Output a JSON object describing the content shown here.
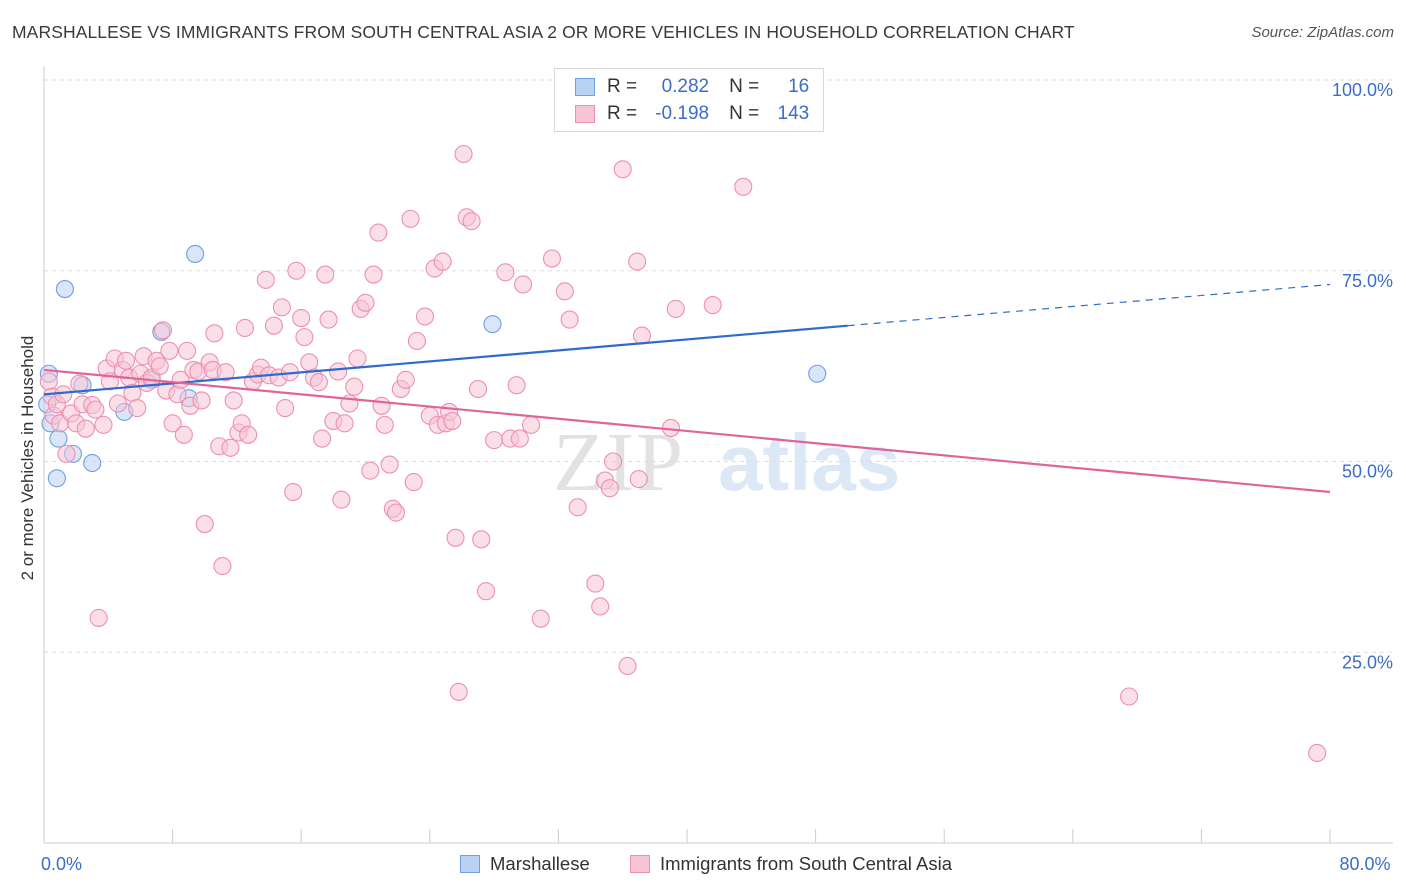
{
  "title": "MARSHALLESE VS IMMIGRANTS FROM SOUTH CENTRAL ASIA 2 OR MORE VEHICLES IN HOUSEHOLD CORRELATION CHART",
  "source": "Source: ZipAtlas.com",
  "watermark": {
    "zip": "ZIP",
    "atlas": "atlas"
  },
  "legend_top": [
    {
      "r_label": "R =",
      "r_value": "0.282",
      "n_label": "N =",
      "n_value": "16"
    },
    {
      "r_label": "R =",
      "r_value": "-0.198",
      "n_label": "N =",
      "n_value": "143"
    }
  ],
  "chart_data": {
    "type": "scatter",
    "xlabel": "",
    "ylabel": "2 or more Vehicles in Household",
    "xlim": [
      0,
      80
    ],
    "ylim": [
      0,
      100
    ],
    "x_ticks": [
      {
        "value": 0,
        "label": "0.0%"
      },
      {
        "value": 80,
        "label": "80.0%"
      }
    ],
    "y_ticks": [
      {
        "value": 25,
        "label": "25.0%"
      },
      {
        "value": 50,
        "label": "50.0%"
      },
      {
        "value": 75,
        "label": "75.0%"
      },
      {
        "value": 100,
        "label": "100.0%"
      }
    ],
    "grid": true,
    "legend_position": "top-center",
    "series": [
      {
        "name": "Marshallese",
        "color": "#6f9fe0",
        "fill": "#b9d1f2",
        "trend": {
          "x0": 0,
          "y0": 58.8,
          "x1": 50,
          "y1": 67.8,
          "dashed_to_x": 80,
          "dashed_to_y": 73.2,
          "color": "#2e6ccc"
        },
        "points": [
          [
            0.3,
            61.5
          ],
          [
            1.3,
            72.6
          ],
          [
            0.9,
            53.0
          ],
          [
            1.8,
            51.0
          ],
          [
            0.8,
            47.8
          ],
          [
            2.4,
            60.0
          ],
          [
            3.0,
            49.8
          ],
          [
            5.0,
            56.5
          ],
          [
            6.7,
            60.7
          ],
          [
            7.3,
            67.0
          ],
          [
            9.0,
            58.3
          ],
          [
            9.4,
            77.2
          ],
          [
            27.9,
            68.0
          ],
          [
            48.1,
            61.5
          ],
          [
            0.2,
            57.5
          ],
          [
            0.4,
            55.0
          ]
        ]
      },
      {
        "name": "Immigrants from South Central Asia",
        "color": "#ee8fb0",
        "fill": "#f7c4d6",
        "trend": {
          "x0": 0,
          "y0": 62.0,
          "x1": 80,
          "y1": 46.0,
          "color": "#e0649a"
        },
        "points": [
          [
            0.3,
            60.5
          ],
          [
            0.5,
            58.5
          ],
          [
            0.6,
            56.0
          ],
          [
            0.8,
            57.5
          ],
          [
            1.0,
            55.0
          ],
          [
            1.2,
            58.8
          ],
          [
            1.4,
            51.0
          ],
          [
            1.7,
            56.3
          ],
          [
            2.0,
            55.0
          ],
          [
            2.2,
            60.2
          ],
          [
            2.4,
            57.5
          ],
          [
            2.6,
            54.3
          ],
          [
            3.0,
            57.4
          ],
          [
            3.2,
            56.8
          ],
          [
            3.4,
            29.5
          ],
          [
            3.7,
            54.8
          ],
          [
            3.9,
            62.2
          ],
          [
            4.1,
            60.5
          ],
          [
            4.4,
            63.5
          ],
          [
            4.6,
            57.6
          ],
          [
            4.9,
            62.0
          ],
          [
            5.1,
            63.2
          ],
          [
            5.3,
            61.0
          ],
          [
            5.5,
            59.0
          ],
          [
            5.8,
            57.0
          ],
          [
            6.0,
            61.5
          ],
          [
            6.2,
            63.8
          ],
          [
            6.4,
            60.3
          ],
          [
            6.7,
            61.0
          ],
          [
            7.0,
            63.2
          ],
          [
            7.2,
            62.5
          ],
          [
            7.4,
            67.2
          ],
          [
            7.6,
            59.3
          ],
          [
            7.8,
            64.5
          ],
          [
            8.0,
            55.0
          ],
          [
            8.3,
            58.8
          ],
          [
            8.5,
            60.7
          ],
          [
            8.7,
            53.5
          ],
          [
            8.9,
            64.5
          ],
          [
            9.1,
            57.3
          ],
          [
            9.3,
            62.0
          ],
          [
            9.6,
            61.8
          ],
          [
            9.8,
            58.0
          ],
          [
            10.0,
            41.8
          ],
          [
            10.3,
            63.0
          ],
          [
            10.5,
            62.0
          ],
          [
            10.6,
            66.8
          ],
          [
            10.9,
            52.0
          ],
          [
            11.1,
            36.3
          ],
          [
            11.3,
            61.7
          ],
          [
            11.6,
            51.8
          ],
          [
            11.8,
            58.0
          ],
          [
            12.1,
            53.8
          ],
          [
            12.3,
            55.0
          ],
          [
            12.5,
            67.5
          ],
          [
            12.7,
            53.5
          ],
          [
            13.0,
            60.5
          ],
          [
            13.3,
            61.4
          ],
          [
            13.5,
            62.3
          ],
          [
            13.8,
            73.8
          ],
          [
            14.0,
            61.3
          ],
          [
            14.3,
            67.8
          ],
          [
            14.6,
            61.0
          ],
          [
            14.8,
            70.2
          ],
          [
            15.0,
            57.0
          ],
          [
            15.3,
            61.7
          ],
          [
            15.5,
            46.0
          ],
          [
            15.7,
            75.0
          ],
          [
            16.0,
            68.8
          ],
          [
            16.2,
            66.3
          ],
          [
            16.5,
            63.0
          ],
          [
            16.8,
            61.0
          ],
          [
            17.1,
            60.4
          ],
          [
            17.3,
            53.0
          ],
          [
            17.5,
            74.5
          ],
          [
            17.7,
            68.6
          ],
          [
            18.0,
            55.3
          ],
          [
            18.3,
            61.8
          ],
          [
            18.5,
            45.0
          ],
          [
            18.7,
            55.0
          ],
          [
            19.0,
            57.6
          ],
          [
            19.3,
            59.8
          ],
          [
            19.5,
            63.5
          ],
          [
            19.7,
            70.0
          ],
          [
            20.0,
            70.8
          ],
          [
            20.3,
            48.8
          ],
          [
            20.5,
            74.5
          ],
          [
            20.8,
            80.0
          ],
          [
            21.0,
            57.3
          ],
          [
            21.2,
            54.8
          ],
          [
            21.5,
            49.6
          ],
          [
            21.7,
            43.8
          ],
          [
            21.9,
            43.3
          ],
          [
            22.2,
            59.5
          ],
          [
            22.5,
            60.7
          ],
          [
            22.8,
            81.8
          ],
          [
            23.0,
            47.3
          ],
          [
            23.2,
            65.8
          ],
          [
            23.7,
            69.0
          ],
          [
            24.0,
            56.0
          ],
          [
            24.3,
            75.3
          ],
          [
            24.5,
            54.8
          ],
          [
            24.8,
            76.2
          ],
          [
            25.0,
            55.0
          ],
          [
            25.2,
            56.5
          ],
          [
            25.4,
            55.3
          ],
          [
            25.6,
            40.0
          ],
          [
            25.8,
            19.8
          ],
          [
            26.1,
            90.3
          ],
          [
            26.3,
            82.0
          ],
          [
            26.6,
            81.5
          ],
          [
            27.0,
            59.5
          ],
          [
            27.2,
            39.8
          ],
          [
            27.5,
            33.0
          ],
          [
            28.0,
            52.8
          ],
          [
            28.7,
            74.8
          ],
          [
            29.0,
            53.0
          ],
          [
            29.4,
            60.0
          ],
          [
            29.6,
            53.0
          ],
          [
            29.8,
            73.2
          ],
          [
            30.3,
            54.8
          ],
          [
            30.9,
            29.4
          ],
          [
            31.6,
            76.6
          ],
          [
            32.4,
            72.3
          ],
          [
            32.7,
            68.6
          ],
          [
            33.2,
            44.0
          ],
          [
            34.3,
            34.0
          ],
          [
            34.6,
            31.0
          ],
          [
            34.9,
            47.5
          ],
          [
            35.2,
            46.5
          ],
          [
            35.4,
            50.0
          ],
          [
            36.0,
            88.3
          ],
          [
            36.3,
            23.2
          ],
          [
            36.9,
            76.2
          ],
          [
            37.0,
            47.7
          ],
          [
            37.2,
            66.5
          ],
          [
            39.0,
            54.4
          ],
          [
            39.3,
            70.0
          ],
          [
            41.6,
            70.5
          ],
          [
            43.5,
            86.0
          ],
          [
            67.5,
            19.2
          ],
          [
            79.2,
            11.8
          ]
        ]
      }
    ]
  }
}
